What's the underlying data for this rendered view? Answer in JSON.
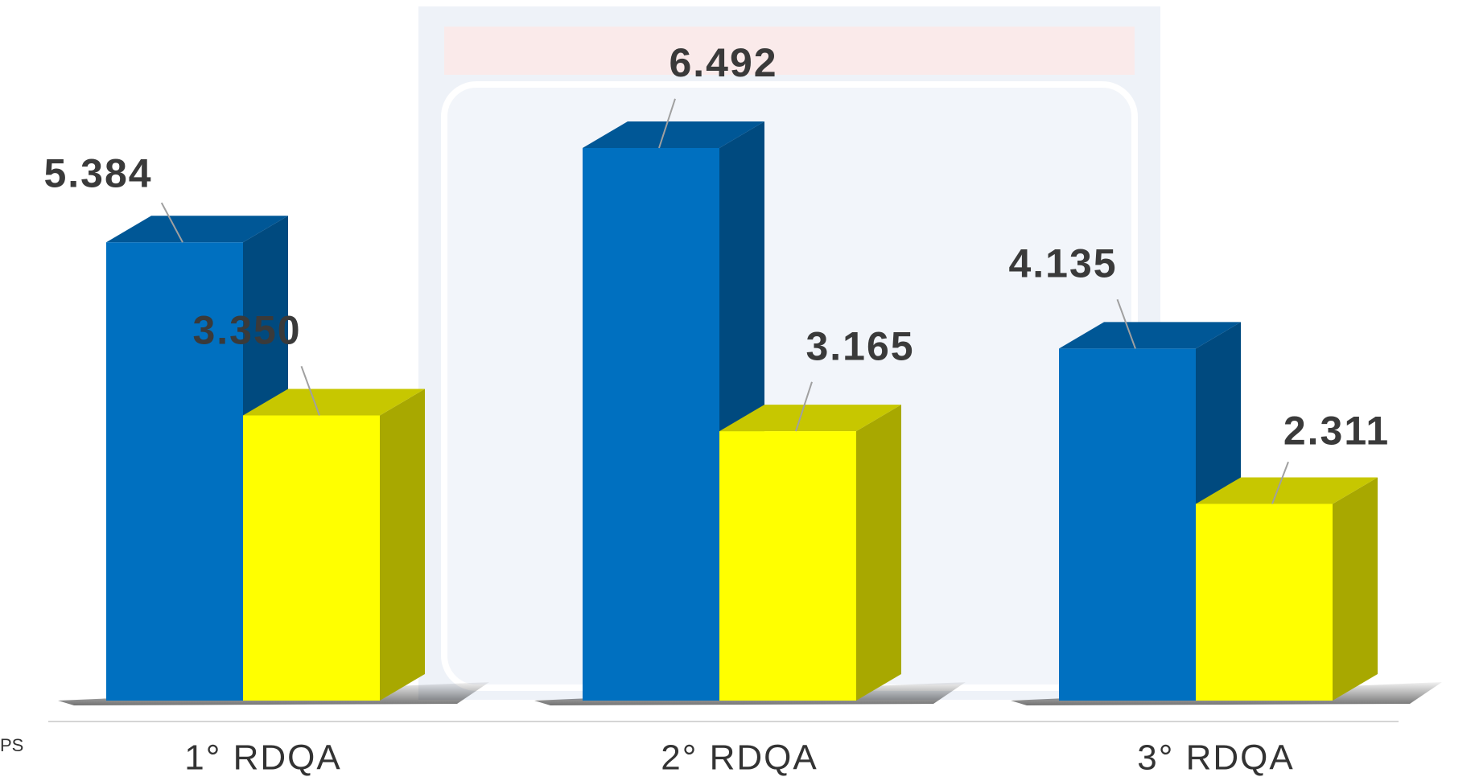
{
  "chart_data": {
    "type": "bar3d",
    "categories": [
      "1° RDQA",
      "2° RDQA",
      "3° RDQA"
    ],
    "series": [
      {
        "color": "#0070c0",
        "values": [
          5384,
          6492,
          4135
        ],
        "value_labels": [
          "5.384",
          "6.492",
          "4.135"
        ]
      },
      {
        "color": "#ffff00",
        "values": [
          3350,
          3165,
          2311
        ],
        "value_labels": [
          "3.350",
          "3.165",
          "2.311"
        ]
      }
    ],
    "annotations": [
      "PS"
    ]
  }
}
